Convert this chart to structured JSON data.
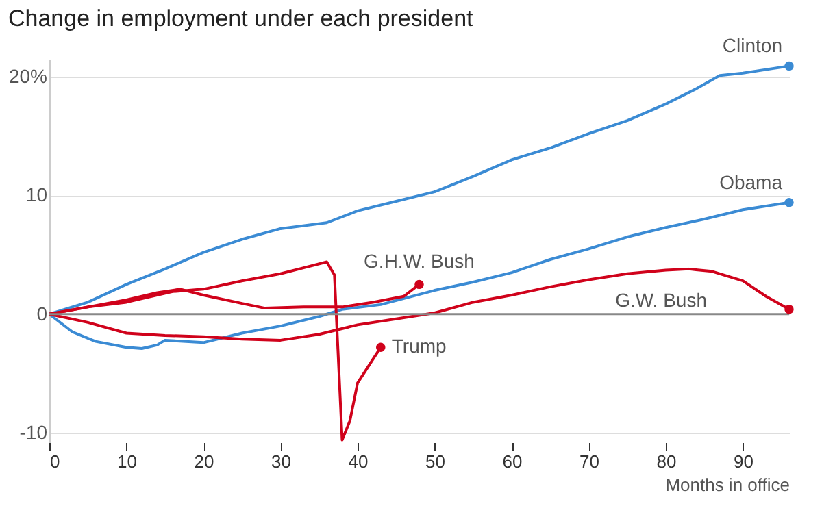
{
  "chart_data": {
    "type": "line",
    "title": "Change in employment under each president",
    "xlabel": "Months in office",
    "xlim": [
      0,
      96
    ],
    "xticks": [
      0,
      10,
      20,
      30,
      40,
      50,
      60,
      70,
      80,
      90
    ],
    "ylim": [
      -10.8,
      21.5
    ],
    "yticks": [
      {
        "value": 20,
        "label": "20%"
      },
      10,
      0,
      -10
    ],
    "grid": "y",
    "legend": false,
    "marker": "none",
    "line_style": "solid",
    "ref_lines": [
      {
        "axis": "y",
        "value": 0,
        "color": "#888888"
      }
    ],
    "series": [
      {
        "name": "Clinton",
        "color": "#3b8bd4",
        "x": [
          0,
          5,
          10,
          15,
          20,
          25,
          30,
          36,
          40,
          45,
          50,
          55,
          60,
          65,
          70,
          75,
          80,
          84,
          87,
          90,
          94,
          96
        ],
        "values": [
          0,
          1.0,
          2.5,
          3.8,
          5.2,
          6.3,
          7.2,
          7.7,
          8.7,
          9.5,
          10.3,
          11.6,
          13.0,
          14.0,
          15.2,
          16.3,
          17.7,
          19.0,
          20.1,
          20.3,
          20.7,
          20.9
        ]
      },
      {
        "name": "Obama",
        "color": "#3b8bd4",
        "x": [
          0,
          3,
          6,
          10,
          12,
          14,
          15,
          20,
          25,
          30,
          35,
          38,
          43,
          50,
          55,
          60,
          65,
          70,
          75,
          80,
          85,
          90,
          96
        ],
        "values": [
          0,
          -1.5,
          -2.3,
          -2.8,
          -2.9,
          -2.6,
          -2.2,
          -2.4,
          -1.6,
          -1.0,
          -0.2,
          0.4,
          0.8,
          2.0,
          2.7,
          3.5,
          4.6,
          5.5,
          6.5,
          7.3,
          8.0,
          8.8,
          9.4
        ]
      },
      {
        "name": "G.H.W. Bush",
        "color": "#d0021b",
        "x": [
          0,
          5,
          10,
          14,
          17,
          20,
          25,
          28,
          33,
          38,
          42,
          46,
          48
        ],
        "values": [
          0,
          0.6,
          1.2,
          1.8,
          2.1,
          1.6,
          0.9,
          0.5,
          0.6,
          0.6,
          1.0,
          1.5,
          2.5
        ]
      },
      {
        "name": "G.W. Bush",
        "color": "#d0021b",
        "x": [
          0,
          5,
          10,
          15,
          20,
          25,
          30,
          35,
          40,
          45,
          50,
          55,
          60,
          65,
          70,
          75,
          80,
          83,
          86,
          90,
          93,
          96
        ],
        "values": [
          0,
          -0.7,
          -1.6,
          -1.8,
          -1.9,
          -2.1,
          -2.2,
          -1.7,
          -0.9,
          -0.4,
          0.1,
          1.0,
          1.6,
          2.3,
          2.9,
          3.4,
          3.7,
          3.8,
          3.6,
          2.8,
          1.5,
          0.4
        ]
      },
      {
        "name": "Trump",
        "color": "#d0021b",
        "x": [
          0,
          5,
          10,
          16,
          20,
          25,
          30,
          33,
          36,
          37,
          38,
          39,
          40,
          42,
          43
        ],
        "values": [
          0,
          0.6,
          1.0,
          1.9,
          2.1,
          2.8,
          3.4,
          3.9,
          4.4,
          3.3,
          -10.6,
          -9.0,
          -5.8,
          -3.8,
          -2.8
        ]
      }
    ]
  }
}
